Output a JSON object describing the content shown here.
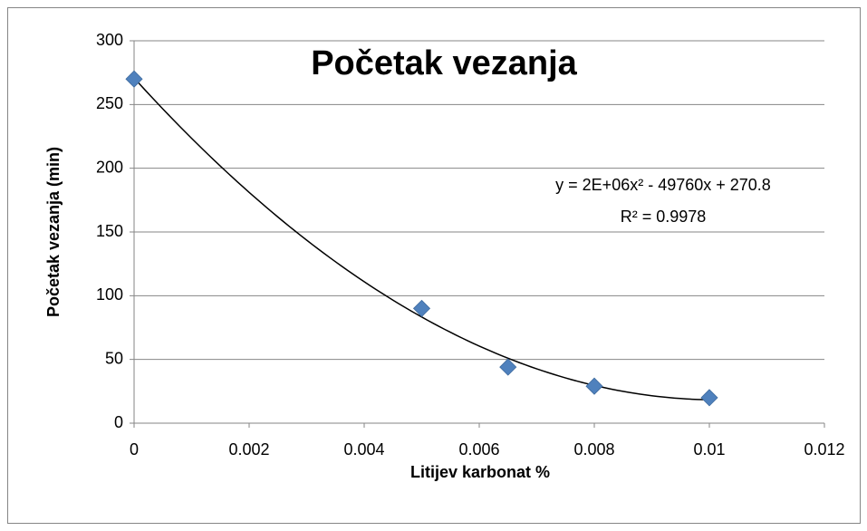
{
  "chart_data": {
    "type": "scatter",
    "title": "Početak vezanja",
    "xlabel": "Litijev karbonat %",
    "ylabel": "Početak vezanja (min)",
    "annotations": [
      "y = 2E+06x² - 49760x + 270.8",
      "R² = 0.9978"
    ],
    "series": [
      {
        "color": "#4f81bd",
        "x": [
          0,
          0.005,
          0.0065,
          0.008,
          0.01
        ],
        "values": [
          270,
          90,
          44,
          29,
          20
        ]
      }
    ],
    "trendline": {
      "type": "polynomial",
      "order": 2,
      "color": "#000000"
    },
    "xlim": [
      0,
      0.012
    ],
    "xticks": [
      0,
      0.002,
      0.004,
      0.006,
      0.008,
      0.01,
      0.012
    ],
    "ylim": [
      0,
      300
    ],
    "yticks": [
      0,
      50,
      100,
      150,
      200,
      250,
      300
    ],
    "grid": true
  }
}
